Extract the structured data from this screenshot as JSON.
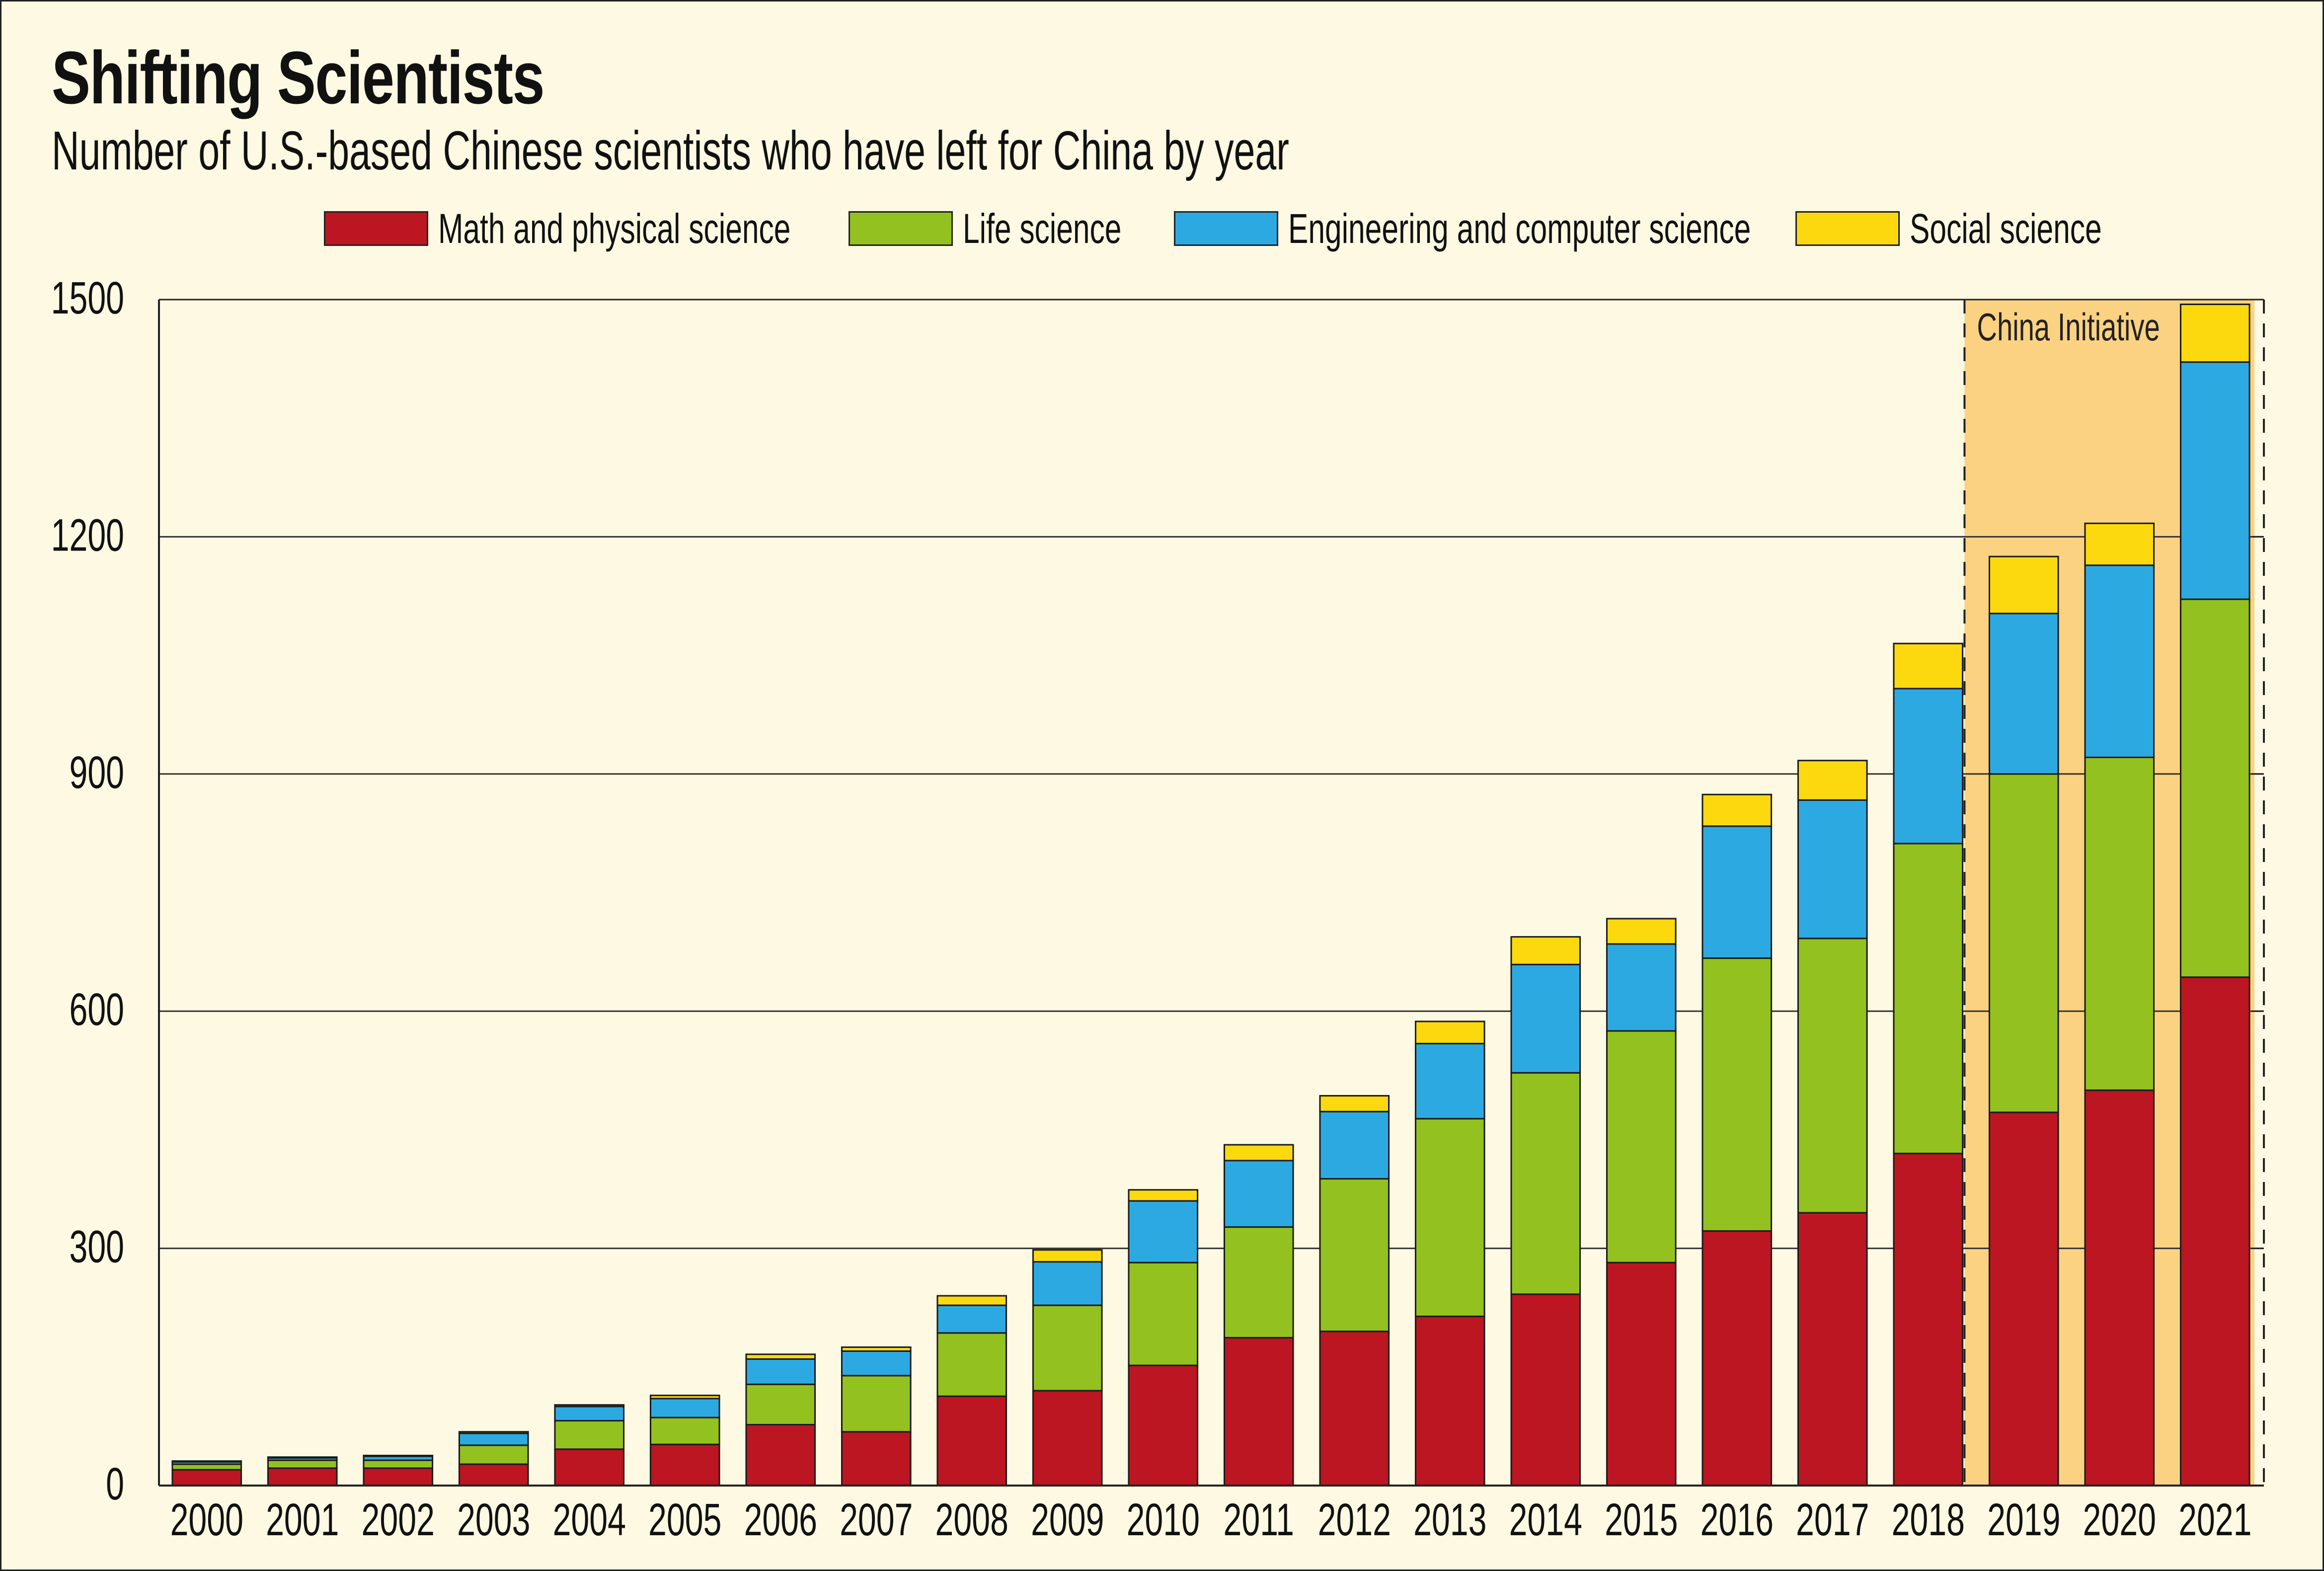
{
  "title": "Shifting Scientists",
  "subtitle": "Number of U.S.-based Chinese scientists who have left for China by year",
  "colors": {
    "background": "#fdf9e2",
    "math": "#bb1622",
    "life": "#93c120",
    "engineering": "#2da9e1",
    "social": "#fcd90e",
    "highlight": "#fbd282"
  },
  "legend": [
    {
      "label": "Math and physical science",
      "color": "#bb1622"
    },
    {
      "label": "Life science",
      "color": "#93c120"
    },
    {
      "label": "Engineering and computer science",
      "color": "#2da9e1"
    },
    {
      "label": "Social science",
      "color": "#fcd90e"
    }
  ],
  "chart_data": {
    "type": "bar",
    "stacked": true,
    "categories": [
      "2000",
      "2001",
      "2002",
      "2003",
      "2004",
      "2005",
      "2006",
      "2007",
      "2008",
      "2009",
      "2010",
      "2011",
      "2012",
      "2013",
      "2014",
      "2015",
      "2016",
      "2017",
      "2018",
      "2019",
      "2020",
      "2021"
    ],
    "series": [
      {
        "name": "Math and physical science",
        "color": "#bb1622",
        "values": [
          20,
          22,
          22,
          27,
          46,
          52,
          77,
          68,
          113,
          120,
          152,
          187,
          195,
          214,
          242,
          282,
          322,
          345,
          420,
          472,
          500,
          643
        ]
      },
      {
        "name": "Life science",
        "color": "#93c120",
        "values": [
          7,
          10,
          10,
          24,
          36,
          34,
          51,
          71,
          80,
          108,
          130,
          140,
          193,
          250,
          280,
          293,
          345,
          347,
          392,
          428,
          421,
          478
        ]
      },
      {
        "name": "Engineering and computer science",
        "color": "#2da9e1",
        "values": [
          3,
          3,
          5,
          15,
          18,
          24,
          32,
          31,
          35,
          55,
          78,
          84,
          85,
          95,
          137,
          110,
          167,
          175,
          196,
          203,
          243,
          300
        ]
      },
      {
        "name": "Social science",
        "color": "#fcd90e",
        "values": [
          1,
          1,
          1,
          2,
          2,
          4,
          6,
          5,
          12,
          15,
          14,
          20,
          20,
          28,
          35,
          32,
          40,
          50,
          57,
          72,
          53,
          73
        ]
      }
    ],
    "ylim": [
      0,
      1500
    ],
    "yticks": [
      0,
      300,
      600,
      900,
      1200,
      1500
    ],
    "grid": true,
    "legend_position": "top",
    "annotation": {
      "label": "China Initiative",
      "start": "2019",
      "end": "2021"
    }
  }
}
